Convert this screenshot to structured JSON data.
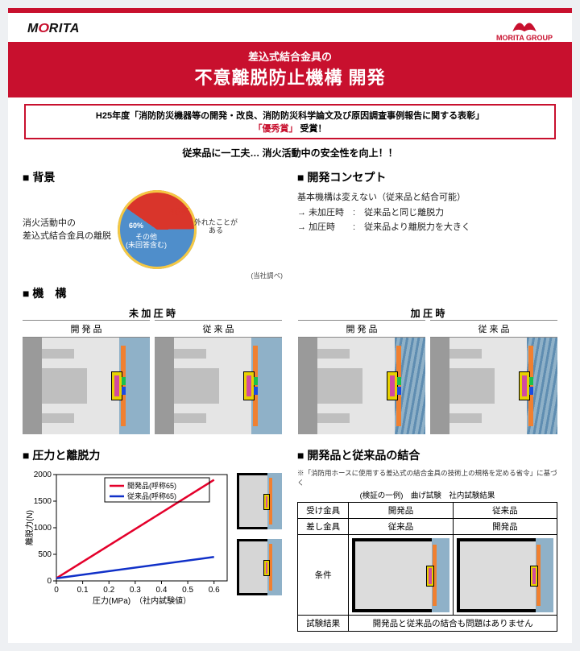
{
  "brand": {
    "name_html": "MORITA",
    "group": "MORITA GROUP"
  },
  "colors": {
    "brand_red": "#c8102e",
    "pie_red": "#d9352b",
    "pie_blue": "#4f8ecb",
    "pie_yellow": "#f5c843",
    "line_red": "#e4002b",
    "line_blue": "#1030c8"
  },
  "title": {
    "sub": "差込式結合金具の",
    "main": "不意離脱防止機構 開発"
  },
  "award": {
    "line1": "H25年度「消防防災機器等の開発・改良、消防防災科学論文及び原因調査事例報告に関する表彰」",
    "prize": "「優秀賞」",
    "suffix": "受賞！"
  },
  "lead": "従来品に一工夫… 消火活動中の安全性を向上！！",
  "sections": {
    "background": "背景",
    "concept": "開発コンセプト",
    "mechanism": "機　構",
    "force": "圧力と離脱力",
    "combination": "開発品と従来品の結合"
  },
  "background_text": {
    "l1": "消火活動中の",
    "l2": "差込式結合金具の離脱"
  },
  "pie": {
    "slices": [
      {
        "label": "40%",
        "sub": "外れたことがある",
        "value": 40,
        "color": "#d9352b"
      },
      {
        "label": "60%",
        "sub": "その他\n(未回答含む)",
        "value": 60,
        "color": "#4f8ecb"
      }
    ],
    "rim_color": "#f5c843",
    "note": "(当社調べ)"
  },
  "concept": {
    "head": "基本機構は変えない（従来品と結合可能）",
    "rows": [
      {
        "state": "未加圧時",
        "text": "従来品と同じ離脱力"
      },
      {
        "state": "加圧時",
        "text": "従来品より離脱力を大きく"
      }
    ]
  },
  "mechanism": {
    "unpressurized": "未 加 圧 時",
    "pressurized": "加 圧 時",
    "dev": "開 発 品",
    "conv": "従 来 品"
  },
  "chart": {
    "xlabel": "圧力(MPa)",
    "ylabel": "離脱力(N)",
    "xnote": "（社内試験値）",
    "xlim": [
      0,
      0.65
    ],
    "ylim": [
      0,
      2000
    ],
    "xticks": [
      0,
      0.1,
      0.2,
      0.3,
      0.4,
      0.5,
      0.6
    ],
    "yticks": [
      0,
      500,
      1000,
      1500,
      2000
    ],
    "series": [
      {
        "name": "開発品(呼称65)",
        "color": "#e4002b",
        "points": [
          [
            0,
            50
          ],
          [
            0.6,
            1900
          ]
        ]
      },
      {
        "name": "従来品(呼称65)",
        "color": "#1030c8",
        "points": [
          [
            0,
            50
          ],
          [
            0.6,
            450
          ]
        ]
      }
    ]
  },
  "combination": {
    "note": "※「消防用ホースに使用する差込式の結合金具の技術上の規格を定める省令」に基づく",
    "sub": "(検証の一例)　曲げ試験　社内試験結果",
    "headers": {
      "recv": "受け金具",
      "insert": "差し金具",
      "dev": "開発品",
      "conv": "従来品"
    },
    "row_labels": {
      "cond": "条件",
      "result": "試験結果"
    },
    "result_text": "開発品と従来品の結合も問題はありません"
  }
}
